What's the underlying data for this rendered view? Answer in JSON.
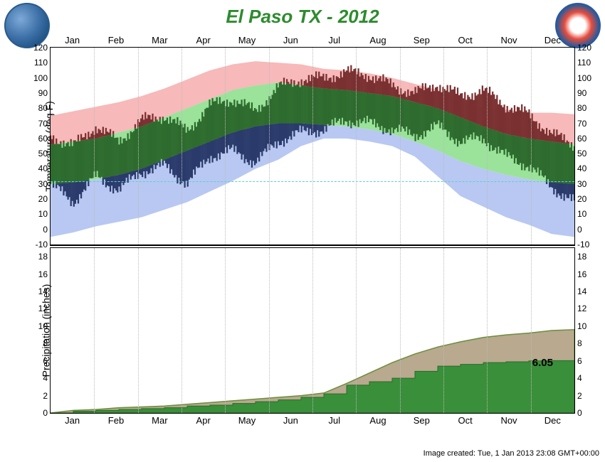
{
  "title": "El Paso TX - 2012",
  "months": [
    "Jan",
    "Feb",
    "Mar",
    "Apr",
    "May",
    "Jun",
    "Jul",
    "Aug",
    "Sep",
    "Oct",
    "Nov",
    "Dec"
  ],
  "tempChart": {
    "ylabel": "Temperature (deg F)",
    "ymin": -10,
    "ymax": 120,
    "ystep": 10,
    "freeze_line": 32,
    "colors": {
      "record_high": "#f7b9b9",
      "normal_band": "#9be29b",
      "record_low": "#b8c8f2",
      "actual_high": "#7a3030",
      "actual_low": "#2a3a6a"
    },
    "record_high": [
      75,
      78,
      81,
      84,
      88,
      93,
      99,
      105,
      109,
      111,
      110,
      109,
      106,
      105,
      103,
      100,
      96,
      92,
      85,
      80,
      79,
      77,
      77,
      76
    ],
    "record_low": [
      -5,
      -2,
      2,
      5,
      8,
      13,
      18,
      25,
      32,
      40,
      46,
      55,
      60,
      60,
      58,
      55,
      48,
      35,
      22,
      15,
      8,
      3,
      -3,
      -5
    ],
    "normal_hi": [
      56,
      58,
      60,
      64,
      68,
      74,
      80,
      86,
      92,
      95,
      97,
      95,
      93,
      92,
      90,
      88,
      84,
      80,
      74,
      68,
      63,
      60,
      58,
      56
    ],
    "normal_lo": [
      30,
      31,
      33,
      36,
      40,
      46,
      52,
      58,
      64,
      68,
      70,
      70,
      69,
      68,
      66,
      63,
      58,
      52,
      45,
      40,
      36,
      33,
      31,
      30
    ],
    "actual_hi": [
      62,
      55,
      68,
      58,
      72,
      75,
      65,
      82,
      86,
      78,
      94,
      99,
      100,
      104,
      102,
      95,
      90,
      96,
      88,
      92,
      82,
      76,
      63,
      56
    ],
    "actual_lo": [
      30,
      18,
      35,
      26,
      38,
      42,
      30,
      48,
      52,
      44,
      58,
      64,
      66,
      72,
      70,
      66,
      62,
      68,
      58,
      60,
      48,
      42,
      28,
      18
    ]
  },
  "precipChart": {
    "ylabel": "Precipitation (inches)",
    "ymin": 0,
    "ymax": 19,
    "ystep": 2,
    "colors": {
      "normal": "#b8a98f",
      "actual": "#3a8f3a"
    },
    "annotation": "6.05",
    "normal_cum": [
      0.0,
      0.3,
      0.4,
      0.6,
      0.7,
      0.8,
      1.0,
      1.2,
      1.4,
      1.6,
      1.8,
      2.0,
      2.3,
      3.4,
      4.6,
      5.8,
      6.8,
      7.6,
      8.2,
      8.7,
      9.0,
      9.2,
      9.5,
      9.6
    ],
    "actual_cum": [
      0.0,
      0.2,
      0.3,
      0.4,
      0.5,
      0.6,
      0.8,
      0.9,
      1.1,
      1.3,
      1.5,
      1.8,
      2.2,
      3.2,
      3.6,
      4.0,
      4.8,
      5.4,
      5.6,
      5.8,
      5.9,
      6.0,
      6.03,
      6.05
    ]
  },
  "footer": "Image created: Tue, 1 Jan 2013 23:08 GMT+00:00"
}
